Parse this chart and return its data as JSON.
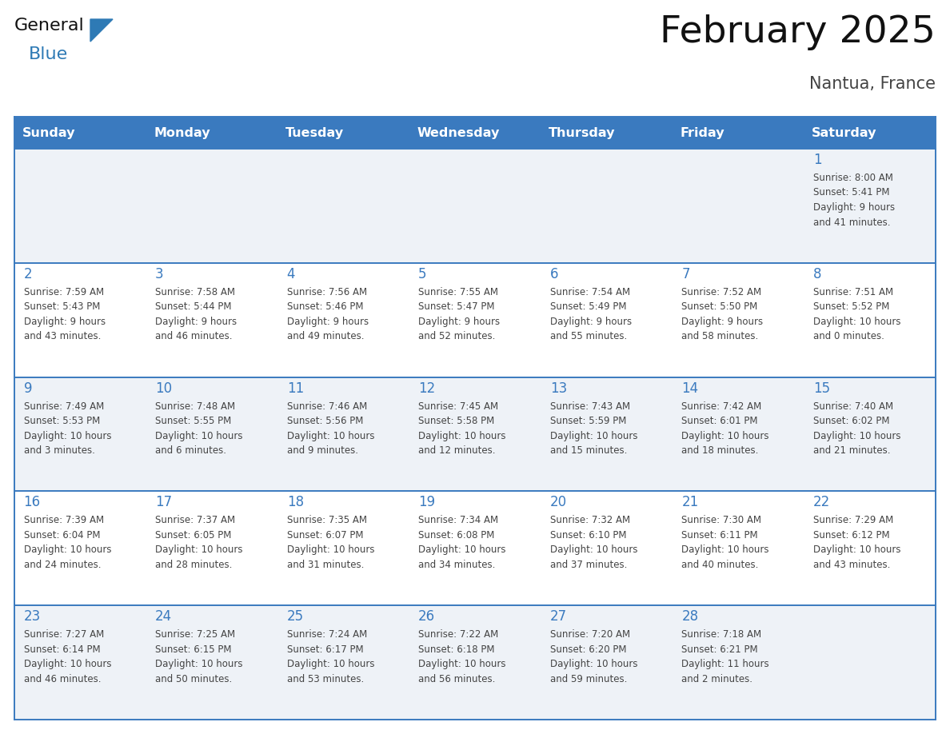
{
  "title": "February 2025",
  "subtitle": "Nantua, France",
  "days_of_week": [
    "Sunday",
    "Monday",
    "Tuesday",
    "Wednesday",
    "Thursday",
    "Friday",
    "Saturday"
  ],
  "header_bg_color": "#3a7abf",
  "header_text_color": "#ffffff",
  "cell_bg_color_odd": "#eef2f7",
  "cell_bg_color_even": "#ffffff",
  "day_band_color_odd": "#eef2f7",
  "day_band_color_even": "#ffffff",
  "row_line_color": "#3a7abf",
  "day_number_color": "#3a7abf",
  "text_color": "#444444",
  "title_color": "#111111",
  "subtitle_color": "#444444",
  "logo_general_color": "#111111",
  "logo_blue_color": "#2e7ab5",
  "calendar_data": [
    [
      {
        "day": null,
        "lines": []
      },
      {
        "day": null,
        "lines": []
      },
      {
        "day": null,
        "lines": []
      },
      {
        "day": null,
        "lines": []
      },
      {
        "day": null,
        "lines": []
      },
      {
        "day": null,
        "lines": []
      },
      {
        "day": 1,
        "lines": [
          "Sunrise: 8:00 AM",
          "Sunset: 5:41 PM",
          "Daylight: 9 hours",
          "and 41 minutes."
        ]
      }
    ],
    [
      {
        "day": 2,
        "lines": [
          "Sunrise: 7:59 AM",
          "Sunset: 5:43 PM",
          "Daylight: 9 hours",
          "and 43 minutes."
        ]
      },
      {
        "day": 3,
        "lines": [
          "Sunrise: 7:58 AM",
          "Sunset: 5:44 PM",
          "Daylight: 9 hours",
          "and 46 minutes."
        ]
      },
      {
        "day": 4,
        "lines": [
          "Sunrise: 7:56 AM",
          "Sunset: 5:46 PM",
          "Daylight: 9 hours",
          "and 49 minutes."
        ]
      },
      {
        "day": 5,
        "lines": [
          "Sunrise: 7:55 AM",
          "Sunset: 5:47 PM",
          "Daylight: 9 hours",
          "and 52 minutes."
        ]
      },
      {
        "day": 6,
        "lines": [
          "Sunrise: 7:54 AM",
          "Sunset: 5:49 PM",
          "Daylight: 9 hours",
          "and 55 minutes."
        ]
      },
      {
        "day": 7,
        "lines": [
          "Sunrise: 7:52 AM",
          "Sunset: 5:50 PM",
          "Daylight: 9 hours",
          "and 58 minutes."
        ]
      },
      {
        "day": 8,
        "lines": [
          "Sunrise: 7:51 AM",
          "Sunset: 5:52 PM",
          "Daylight: 10 hours",
          "and 0 minutes."
        ]
      }
    ],
    [
      {
        "day": 9,
        "lines": [
          "Sunrise: 7:49 AM",
          "Sunset: 5:53 PM",
          "Daylight: 10 hours",
          "and 3 minutes."
        ]
      },
      {
        "day": 10,
        "lines": [
          "Sunrise: 7:48 AM",
          "Sunset: 5:55 PM",
          "Daylight: 10 hours",
          "and 6 minutes."
        ]
      },
      {
        "day": 11,
        "lines": [
          "Sunrise: 7:46 AM",
          "Sunset: 5:56 PM",
          "Daylight: 10 hours",
          "and 9 minutes."
        ]
      },
      {
        "day": 12,
        "lines": [
          "Sunrise: 7:45 AM",
          "Sunset: 5:58 PM",
          "Daylight: 10 hours",
          "and 12 minutes."
        ]
      },
      {
        "day": 13,
        "lines": [
          "Sunrise: 7:43 AM",
          "Sunset: 5:59 PM",
          "Daylight: 10 hours",
          "and 15 minutes."
        ]
      },
      {
        "day": 14,
        "lines": [
          "Sunrise: 7:42 AM",
          "Sunset: 6:01 PM",
          "Daylight: 10 hours",
          "and 18 minutes."
        ]
      },
      {
        "day": 15,
        "lines": [
          "Sunrise: 7:40 AM",
          "Sunset: 6:02 PM",
          "Daylight: 10 hours",
          "and 21 minutes."
        ]
      }
    ],
    [
      {
        "day": 16,
        "lines": [
          "Sunrise: 7:39 AM",
          "Sunset: 6:04 PM",
          "Daylight: 10 hours",
          "and 24 minutes."
        ]
      },
      {
        "day": 17,
        "lines": [
          "Sunrise: 7:37 AM",
          "Sunset: 6:05 PM",
          "Daylight: 10 hours",
          "and 28 minutes."
        ]
      },
      {
        "day": 18,
        "lines": [
          "Sunrise: 7:35 AM",
          "Sunset: 6:07 PM",
          "Daylight: 10 hours",
          "and 31 minutes."
        ]
      },
      {
        "day": 19,
        "lines": [
          "Sunrise: 7:34 AM",
          "Sunset: 6:08 PM",
          "Daylight: 10 hours",
          "and 34 minutes."
        ]
      },
      {
        "day": 20,
        "lines": [
          "Sunrise: 7:32 AM",
          "Sunset: 6:10 PM",
          "Daylight: 10 hours",
          "and 37 minutes."
        ]
      },
      {
        "day": 21,
        "lines": [
          "Sunrise: 7:30 AM",
          "Sunset: 6:11 PM",
          "Daylight: 10 hours",
          "and 40 minutes."
        ]
      },
      {
        "day": 22,
        "lines": [
          "Sunrise: 7:29 AM",
          "Sunset: 6:12 PM",
          "Daylight: 10 hours",
          "and 43 minutes."
        ]
      }
    ],
    [
      {
        "day": 23,
        "lines": [
          "Sunrise: 7:27 AM",
          "Sunset: 6:14 PM",
          "Daylight: 10 hours",
          "and 46 minutes."
        ]
      },
      {
        "day": 24,
        "lines": [
          "Sunrise: 7:25 AM",
          "Sunset: 6:15 PM",
          "Daylight: 10 hours",
          "and 50 minutes."
        ]
      },
      {
        "day": 25,
        "lines": [
          "Sunrise: 7:24 AM",
          "Sunset: 6:17 PM",
          "Daylight: 10 hours",
          "and 53 minutes."
        ]
      },
      {
        "day": 26,
        "lines": [
          "Sunrise: 7:22 AM",
          "Sunset: 6:18 PM",
          "Daylight: 10 hours",
          "and 56 minutes."
        ]
      },
      {
        "day": 27,
        "lines": [
          "Sunrise: 7:20 AM",
          "Sunset: 6:20 PM",
          "Daylight: 10 hours",
          "and 59 minutes."
        ]
      },
      {
        "day": 28,
        "lines": [
          "Sunrise: 7:18 AM",
          "Sunset: 6:21 PM",
          "Daylight: 11 hours",
          "and 2 minutes."
        ]
      },
      {
        "day": null,
        "lines": []
      }
    ]
  ]
}
